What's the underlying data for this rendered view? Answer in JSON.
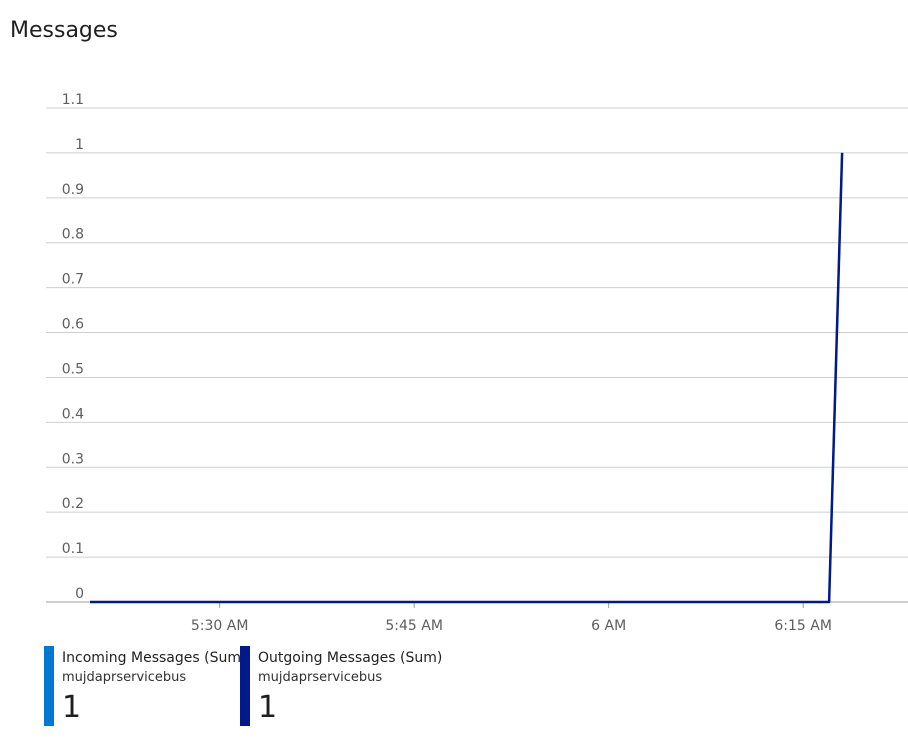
{
  "title": "Messages",
  "chart_data": {
    "type": "line",
    "ylim": [
      0,
      1.1
    ],
    "yticks": [
      {
        "value": 0,
        "label": "0"
      },
      {
        "value": 0.1,
        "label": "0.1"
      },
      {
        "value": 0.2,
        "label": "0.2"
      },
      {
        "value": 0.3,
        "label": "0.3"
      },
      {
        "value": 0.4,
        "label": "0.4"
      },
      {
        "value": 0.5,
        "label": "0.5"
      },
      {
        "value": 0.6,
        "label": "0.6"
      },
      {
        "value": 0.7,
        "label": "0.7"
      },
      {
        "value": 0.8,
        "label": "0.8"
      },
      {
        "value": 0.9,
        "label": "0.9"
      },
      {
        "value": 1,
        "label": "1"
      },
      {
        "value": 1.1,
        "label": "1.1"
      }
    ],
    "xlim": [
      "5:20 AM",
      "6:20 AM"
    ],
    "xticks": [
      "5:30 AM",
      "5:45 AM",
      "6 AM",
      "6:15 AM"
    ],
    "grid": true,
    "series": [
      {
        "name": "Incoming Messages (Sum)",
        "resource": "mujdaprservicebus",
        "total": "1",
        "color": "#0078d4",
        "x": [
          "5:20 AM",
          "6:17 AM",
          "6:18 AM"
        ],
        "y": [
          0,
          0,
          1
        ]
      },
      {
        "name": "Outgoing Messages (Sum)",
        "resource": "mujdaprservicebus",
        "total": "1",
        "color": "#001a8c",
        "x": [
          "5:20 AM",
          "6:17 AM",
          "6:18 AM"
        ],
        "y": [
          0,
          0,
          1
        ]
      }
    ]
  }
}
